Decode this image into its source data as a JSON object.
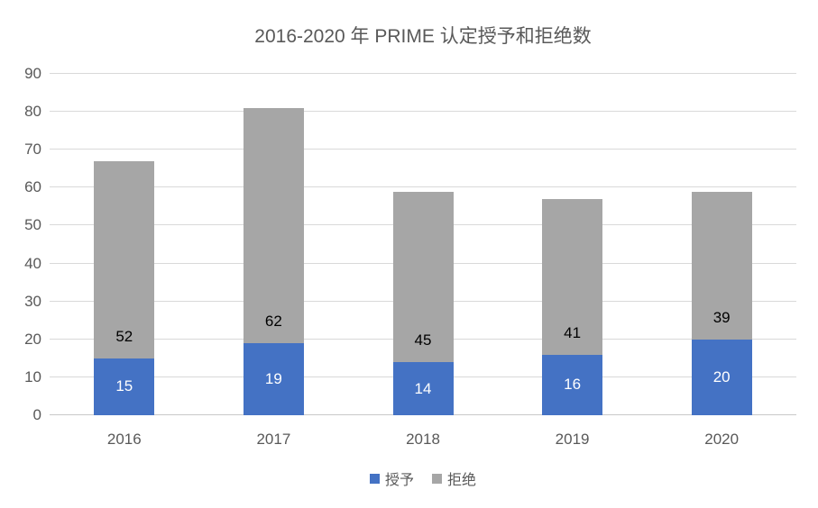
{
  "chart_data": {
    "type": "bar",
    "stacked": true,
    "title": "2016-2020 年 PRIME 认定授予和拒绝数",
    "categories": [
      "2016",
      "2017",
      "2018",
      "2019",
      "2020"
    ],
    "series": [
      {
        "name": "授予",
        "color": "#4472C4",
        "label_color": "#FFFFFF",
        "label_position": "center",
        "values": [
          15,
          19,
          14,
          16,
          20
        ]
      },
      {
        "name": "拒绝",
        "color": "#A6A6A6",
        "label_color": "#000000",
        "label_position": "inside-base",
        "values": [
          52,
          62,
          45,
          41,
          39
        ]
      }
    ],
    "ylim": [
      0,
      90
    ],
    "yticks": [
      0,
      10,
      20,
      30,
      40,
      50,
      60,
      70,
      80,
      90
    ],
    "grid": "horizontal",
    "legend_position": "bottom",
    "data_labels": true
  },
  "colors": {
    "background": "#FFFFFF",
    "title_text": "#595959",
    "axis_text": "#595959",
    "gridline": "#D9D9D9",
    "baseline": "#C9C9C9"
  }
}
